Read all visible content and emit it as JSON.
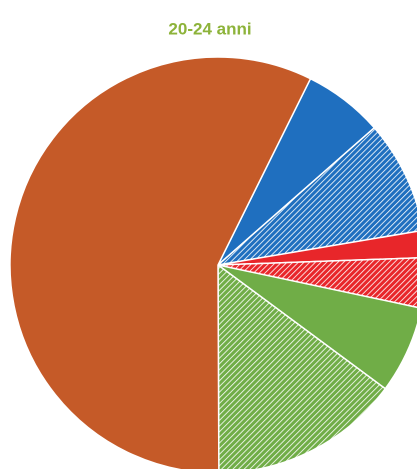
{
  "chart_data": {
    "type": "pie",
    "title": "20-24 anni",
    "categories": [
      null,
      null,
      null,
      null,
      null,
      null,
      null
    ],
    "values": [
      6.2,
      8.8,
      2.1,
      3.9,
      6.8,
      14.8,
      57.4
    ],
    "colors": [
      "#1f6fbf",
      "#1f6fbf",
      "#e8262a",
      "#e8262a",
      "#70ad47",
      "#70ad47",
      "#c55a28"
    ],
    "hatched": [
      false,
      true,
      false,
      true,
      false,
      true,
      false
    ]
  }
}
